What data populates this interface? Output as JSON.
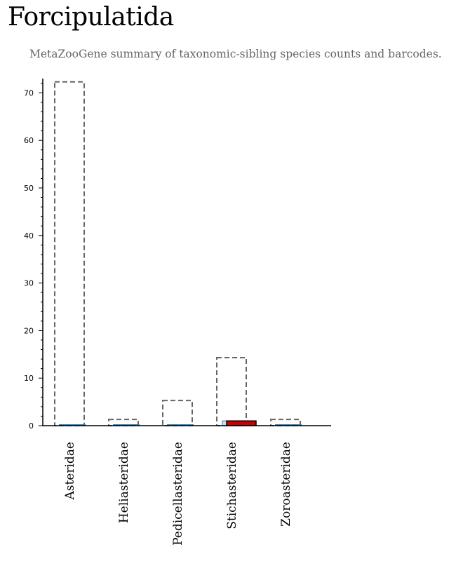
{
  "page": {
    "title": "Forcipulatida",
    "subtitle": "MetaZooGene summary of taxonomic-sibling species counts and barcodes."
  },
  "chart_data": {
    "type": "bar",
    "title": "",
    "xlabel": "",
    "ylabel": "",
    "ylim": [
      0,
      73
    ],
    "yticks": [
      0,
      10,
      20,
      30,
      40,
      50,
      60,
      70
    ],
    "categories": [
      "Asteridae",
      "Heliasteridae",
      "Pedicellasteridae",
      "Stichasteridae",
      "Zoroasteridae"
    ],
    "series": [
      {
        "style": "dashed-outline",
        "color": "#666666",
        "values": [
          72,
          1,
          5,
          14,
          1
        ]
      },
      {
        "style": "filled",
        "color": "#bfe4f7",
        "edge": "#2a7fc1",
        "values": [
          0,
          0,
          0,
          1,
          0
        ]
      },
      {
        "style": "filled",
        "color": "#cc0000",
        "edge": "#000000",
        "values": [
          0,
          0,
          0,
          1,
          0
        ]
      }
    ],
    "grid": false,
    "legend": "none"
  }
}
